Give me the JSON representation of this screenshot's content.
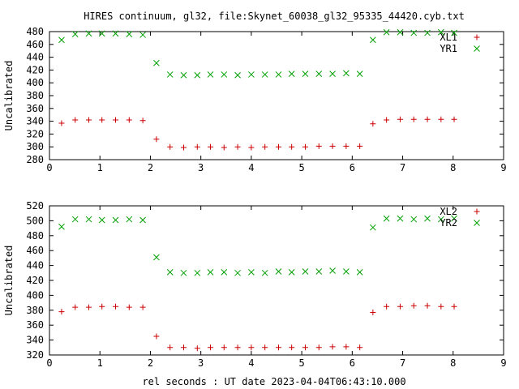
{
  "title": "HIRES continuum, gl32, file:Skynet_60038_gl32_95335_44420.cyb.txt",
  "xlabel": "rel seconds : UT date 2023-04-04T06:43:10.000",
  "colors": {
    "red": "#cc0000",
    "green": "#00a000",
    "axis": "#000000"
  },
  "chart_data": [
    {
      "type": "scatter",
      "ylabel": "Uncalibrated",
      "xlim": [
        0,
        9
      ],
      "ylim": [
        280,
        480
      ],
      "xticks": [
        0,
        1,
        2,
        3,
        4,
        5,
        6,
        7,
        8,
        9
      ],
      "yticks": [
        280,
        300,
        320,
        340,
        360,
        380,
        400,
        420,
        440,
        460,
        480
      ],
      "legend": "top-right",
      "series": [
        {
          "name": "XL1",
          "marker": "plus",
          "color": "#cc0000",
          "x": [
            0.24,
            0.51,
            0.78,
            1.04,
            1.31,
            1.58,
            1.85,
            2.12,
            2.39,
            2.66,
            2.93,
            3.19,
            3.46,
            3.73,
            4.0,
            4.27,
            4.54,
            4.8,
            5.07,
            5.34,
            5.61,
            5.88,
            6.15,
            6.41,
            6.68,
            6.95,
            7.22,
            7.49,
            7.76,
            8.02
          ],
          "y": [
            337,
            342,
            342,
            342,
            342,
            342,
            341,
            312,
            300,
            299,
            300,
            300,
            299,
            300,
            299,
            300,
            300,
            300,
            300,
            301,
            301,
            301,
            301,
            336,
            342,
            343,
            343,
            343,
            343,
            343
          ]
        },
        {
          "name": "YR1",
          "marker": "cross",
          "color": "#00a000",
          "x": [
            0.24,
            0.51,
            0.78,
            1.04,
            1.31,
            1.58,
            1.85,
            2.12,
            2.39,
            2.66,
            2.93,
            3.19,
            3.46,
            3.73,
            4.0,
            4.27,
            4.54,
            4.8,
            5.07,
            5.34,
            5.61,
            5.88,
            6.15,
            6.41,
            6.68,
            6.95,
            7.22,
            7.49,
            7.76,
            8.02
          ],
          "y": [
            467,
            476,
            477,
            477,
            477,
            476,
            475,
            431,
            413,
            412,
            412,
            413,
            413,
            412,
            413,
            413,
            413,
            414,
            414,
            414,
            414,
            415,
            414,
            467,
            479,
            479,
            478,
            478,
            479,
            478
          ]
        }
      ]
    },
    {
      "type": "scatter",
      "ylabel": "Uncalibrated",
      "xlim": [
        0,
        9
      ],
      "ylim": [
        320,
        520
      ],
      "xticks": [
        0,
        1,
        2,
        3,
        4,
        5,
        6,
        7,
        8,
        9
      ],
      "yticks": [
        320,
        340,
        360,
        380,
        400,
        420,
        440,
        460,
        480,
        500,
        520
      ],
      "legend": "top-right",
      "series": [
        {
          "name": "XL2",
          "marker": "plus",
          "color": "#cc0000",
          "x": [
            0.24,
            0.51,
            0.78,
            1.04,
            1.31,
            1.58,
            1.85,
            2.12,
            2.39,
            2.66,
            2.93,
            3.19,
            3.46,
            3.73,
            4.0,
            4.27,
            4.54,
            4.8,
            5.07,
            5.34,
            5.61,
            5.88,
            6.15,
            6.41,
            6.68,
            6.95,
            7.22,
            7.49,
            7.76,
            8.02
          ],
          "y": [
            378,
            384,
            384,
            385,
            385,
            384,
            384,
            345,
            330,
            330,
            329,
            330,
            330,
            330,
            330,
            330,
            330,
            330,
            330,
            330,
            331,
            331,
            330,
            377,
            385,
            385,
            386,
            386,
            385,
            385
          ]
        },
        {
          "name": "YR2",
          "marker": "cross",
          "color": "#00a000",
          "x": [
            0.24,
            0.51,
            0.78,
            1.04,
            1.31,
            1.58,
            1.85,
            2.12,
            2.39,
            2.66,
            2.93,
            3.19,
            3.46,
            3.73,
            4.0,
            4.27,
            4.54,
            4.8,
            5.07,
            5.34,
            5.61,
            5.88,
            6.15,
            6.41,
            6.68,
            6.95,
            7.22,
            7.49,
            7.76,
            8.02
          ],
          "y": [
            492,
            502,
            502,
            501,
            501,
            502,
            501,
            451,
            431,
            430,
            430,
            431,
            431,
            430,
            431,
            430,
            432,
            431,
            432,
            432,
            433,
            432,
            431,
            491,
            503,
            503,
            502,
            503,
            502,
            503
          ]
        }
      ]
    }
  ]
}
